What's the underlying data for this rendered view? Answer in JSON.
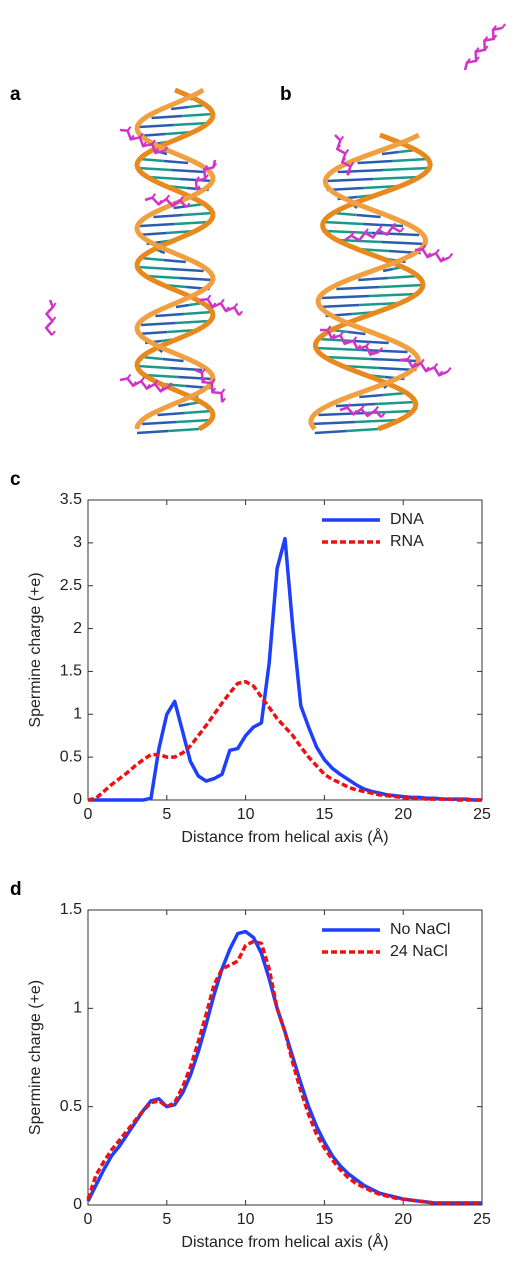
{
  "figure": {
    "panel_labels": [
      "a",
      "b"
    ]
  },
  "chart_data": [
    {
      "type": "line",
      "panel": "c",
      "xlabel": "Distance from helical axis (Å)",
      "ylabel": "Spermine charge (+e)",
      "xlim": [
        0,
        25
      ],
      "xticks": [
        0,
        5,
        10,
        15,
        20,
        25
      ],
      "ylim": [
        0,
        3.5
      ],
      "yticks": [
        0,
        0.5,
        1,
        1.5,
        2,
        2.5,
        3,
        3.5
      ],
      "legend": "upper right",
      "x": [
        0,
        0.5,
        1,
        1.5,
        2,
        2.5,
        3,
        3.5,
        4,
        4.5,
        5,
        5.5,
        6,
        6.5,
        7,
        7.5,
        8,
        8.5,
        9,
        9.5,
        10,
        10.5,
        11,
        11.5,
        12,
        12.5,
        13,
        13.5,
        14,
        14.5,
        15,
        15.5,
        16,
        16.5,
        17,
        17.5,
        18,
        18.5,
        19,
        19.5,
        20,
        20.5,
        21,
        21.5,
        22,
        22.5,
        23,
        23.5,
        24,
        24.5,
        25
      ],
      "series": [
        {
          "name": "DNA",
          "color": "#1f3fff",
          "dash": "solid",
          "values": [
            0,
            0,
            0,
            0,
            0,
            0,
            0,
            0,
            0.02,
            0.6,
            1.0,
            1.15,
            0.8,
            0.45,
            0.28,
            0.22,
            0.25,
            0.3,
            0.58,
            0.6,
            0.75,
            0.85,
            0.9,
            1.6,
            2.7,
            3.05,
            2.0,
            1.1,
            0.85,
            0.62,
            0.47,
            0.37,
            0.3,
            0.24,
            0.18,
            0.13,
            0.1,
            0.08,
            0.06,
            0.05,
            0.04,
            0.03,
            0.03,
            0.02,
            0.02,
            0.01,
            0.01,
            0.01,
            0.01,
            0,
            0
          ]
        },
        {
          "name": "RNA",
          "color": "#ee1111",
          "dash": "dashed",
          "values": [
            0,
            0.02,
            0.1,
            0.18,
            0.25,
            0.32,
            0.4,
            0.47,
            0.53,
            0.53,
            0.5,
            0.5,
            0.55,
            0.63,
            0.75,
            0.87,
            1.0,
            1.13,
            1.25,
            1.36,
            1.38,
            1.33,
            1.2,
            1.08,
            0.95,
            0.85,
            0.75,
            0.62,
            0.5,
            0.4,
            0.3,
            0.24,
            0.2,
            0.15,
            0.12,
            0.1,
            0.08,
            0.06,
            0.05,
            0.04,
            0.03,
            0.02,
            0.02,
            0.01,
            0.01,
            0.01,
            0.01,
            0,
            0,
            0,
            0
          ]
        }
      ]
    },
    {
      "type": "line",
      "panel": "d",
      "xlabel": "Distance from helical axis (Å)",
      "ylabel": "Spermine charge (+e)",
      "xlim": [
        0,
        25
      ],
      "xticks": [
        0,
        5,
        10,
        15,
        20,
        25
      ],
      "ylim": [
        0,
        1.5
      ],
      "yticks": [
        0,
        0.5,
        1,
        1.5
      ],
      "legend": "upper right",
      "x": [
        0,
        0.5,
        1,
        1.5,
        2,
        2.5,
        3,
        3.5,
        4,
        4.5,
        5,
        5.5,
        6,
        6.5,
        7,
        7.5,
        8,
        8.5,
        9,
        9.5,
        10,
        10.5,
        11,
        11.5,
        12,
        12.5,
        13,
        13.5,
        14,
        14.5,
        15,
        15.5,
        16,
        16.5,
        17,
        17.5,
        18,
        18.5,
        19,
        19.5,
        20,
        20.5,
        21,
        21.5,
        22,
        22.5,
        23,
        23.5,
        24,
        24.5,
        25
      ],
      "series": [
        {
          "name": "No NaCl",
          "color": "#1f3fff",
          "dash": "solid",
          "values": [
            0.02,
            0.1,
            0.18,
            0.25,
            0.3,
            0.36,
            0.42,
            0.48,
            0.53,
            0.54,
            0.5,
            0.51,
            0.57,
            0.66,
            0.78,
            0.92,
            1.07,
            1.2,
            1.3,
            1.38,
            1.39,
            1.36,
            1.28,
            1.15,
            1.0,
            0.88,
            0.75,
            0.62,
            0.5,
            0.4,
            0.32,
            0.25,
            0.2,
            0.16,
            0.13,
            0.1,
            0.08,
            0.06,
            0.05,
            0.04,
            0.03,
            0.025,
            0.02,
            0.015,
            0.01,
            0.01,
            0.01,
            0.01,
            0.01,
            0.01,
            0.01
          ]
        },
        {
          "name": "24 NaCl",
          "color": "#ee1111",
          "dash": "dashed",
          "values": [
            0.03,
            0.15,
            0.22,
            0.28,
            0.33,
            0.38,
            0.43,
            0.48,
            0.52,
            0.53,
            0.5,
            0.52,
            0.6,
            0.7,
            0.83,
            0.97,
            1.12,
            1.2,
            1.22,
            1.24,
            1.32,
            1.34,
            1.33,
            1.2,
            1.0,
            0.88,
            0.72,
            0.58,
            0.46,
            0.36,
            0.29,
            0.23,
            0.18,
            0.14,
            0.11,
            0.09,
            0.07,
            0.055,
            0.045,
            0.035,
            0.03,
            0.025,
            0.02,
            0.015,
            0.01,
            0.01,
            0.01,
            0.01,
            0.01,
            0.01,
            0.01
          ]
        }
      ]
    }
  ]
}
